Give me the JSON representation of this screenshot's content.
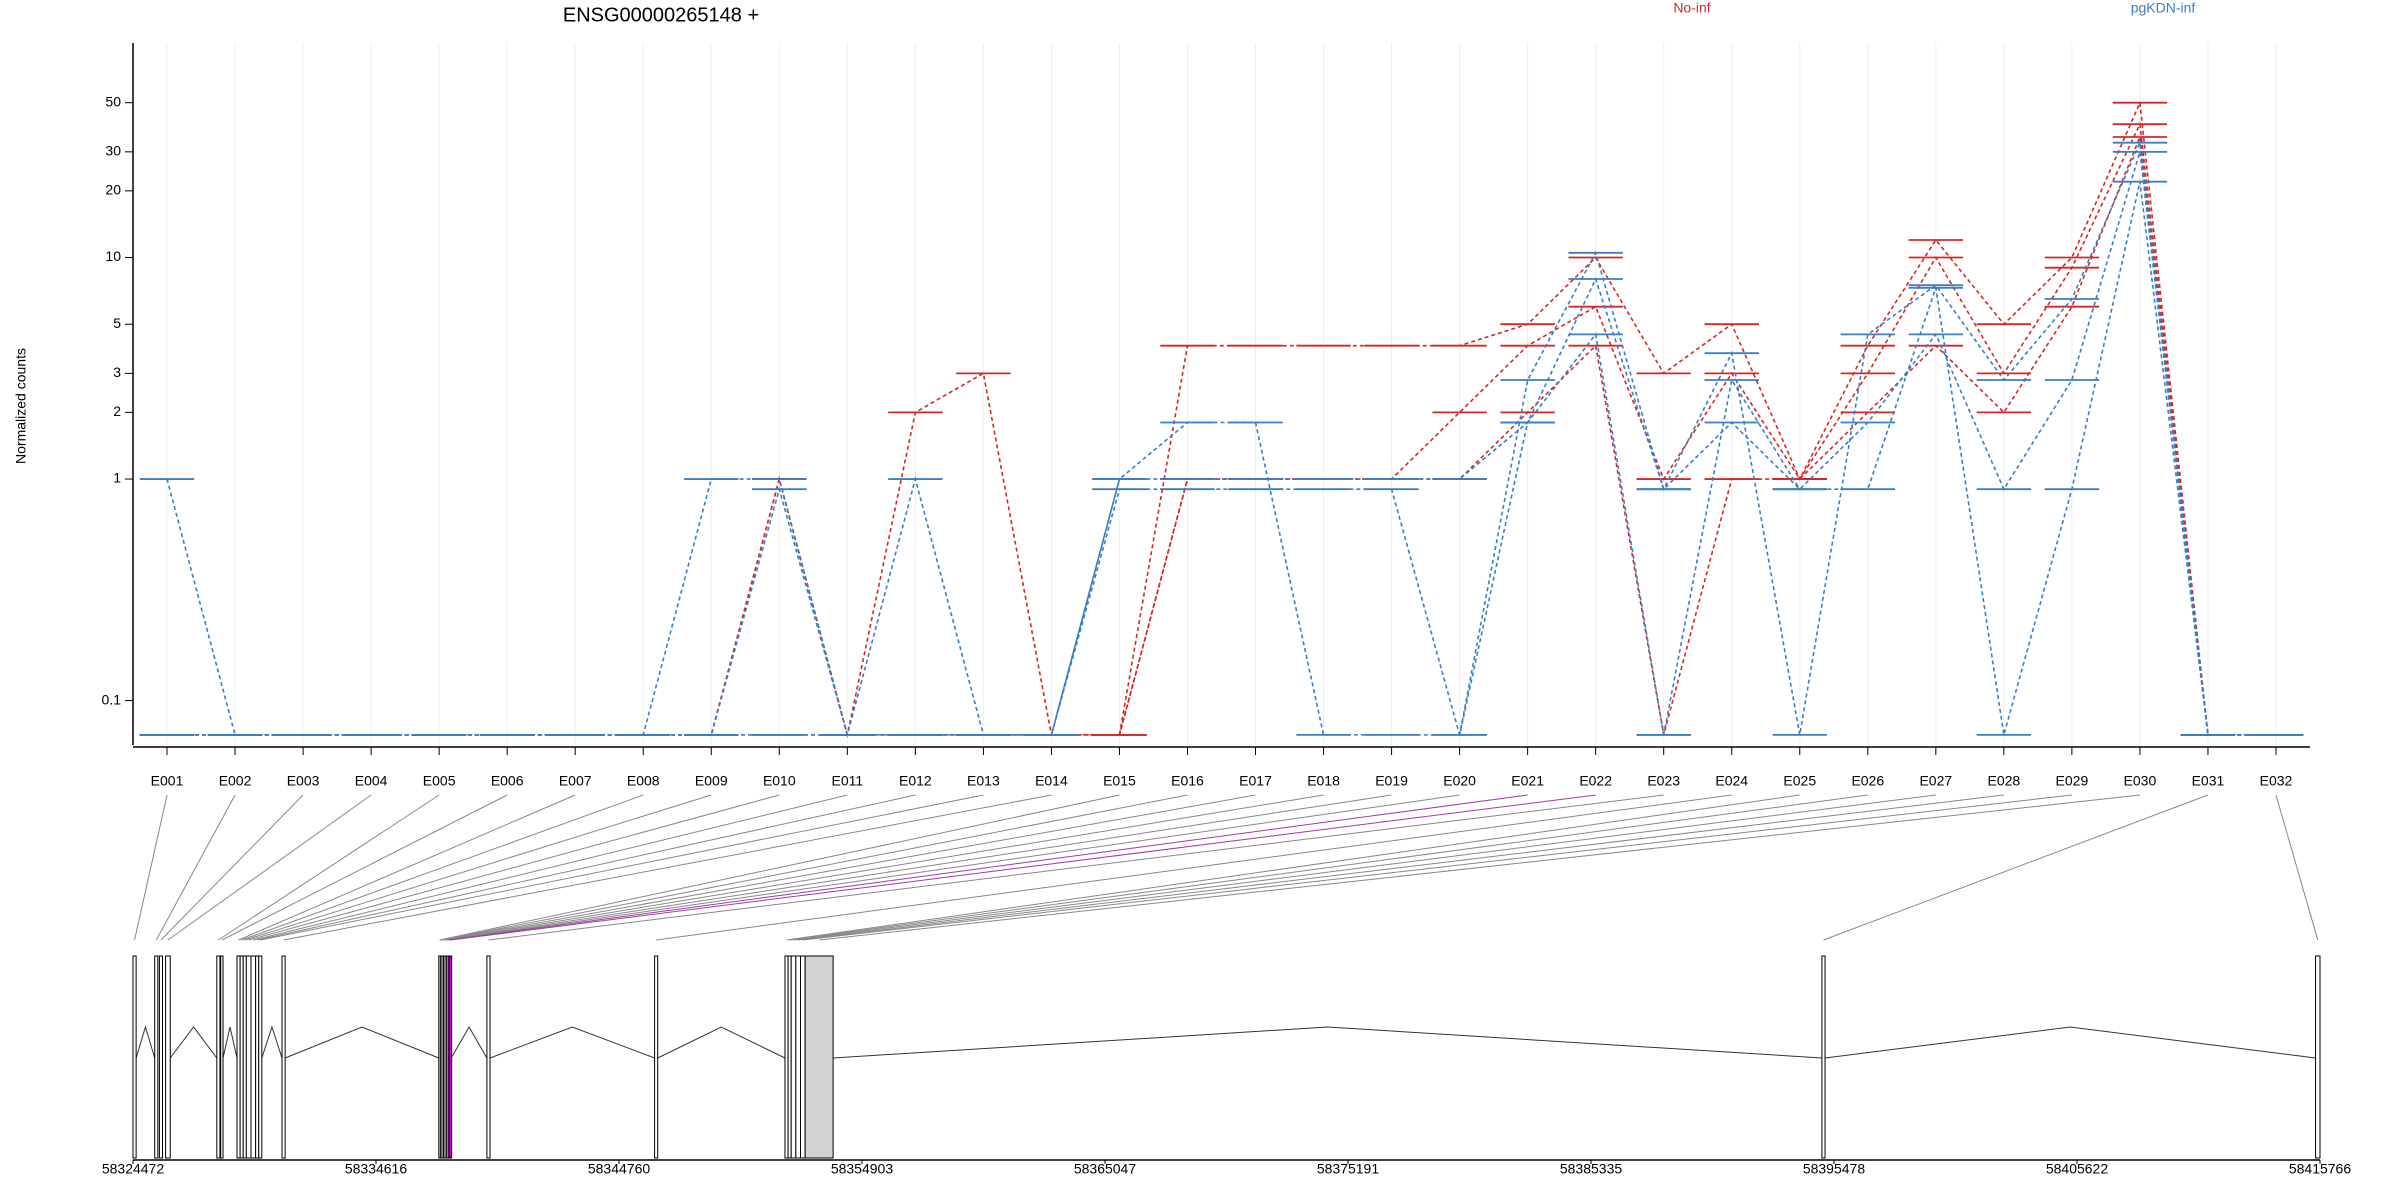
{
  "chart_data": {
    "type": "line",
    "title": "ENSG00000265148 +",
    "y_label": "Normalized counts",
    "log_y": true,
    "grid": true,
    "groups": [
      {
        "name": "No-inf",
        "color": "#d62728"
      },
      {
        "name": "pgKDN-inf",
        "color": "#3b7ec2"
      }
    ],
    "categories": [
      "E001",
      "E002",
      "E003",
      "E004",
      "E005",
      "E006",
      "E007",
      "E008",
      "E009",
      "E010",
      "E011",
      "E012",
      "E013",
      "E014",
      "E015",
      "E016",
      "E017",
      "E018",
      "E019",
      "E020",
      "E021",
      "E022",
      "E023",
      "E024",
      "E025",
      "E026",
      "E027",
      "E028",
      "E029",
      "E030",
      "E031",
      "E032"
    ],
    "series": [
      {
        "group": 0,
        "values": [
          0.07,
          0.07,
          0.07,
          0.07,
          0.07,
          0.07,
          0.07,
          0.07,
          0.07,
          1,
          0.07,
          2,
          3,
          0.07,
          0.07,
          4,
          4,
          4,
          4,
          4,
          5,
          10,
          3,
          5,
          1,
          4,
          12,
          5,
          10,
          50,
          0.07,
          0.07
        ]
      },
      {
        "group": 0,
        "values": [
          0.07,
          0.07,
          0.07,
          0.07,
          0.07,
          0.07,
          0.07,
          0.07,
          0.07,
          1,
          0.07,
          0.07,
          0.07,
          0.07,
          0.07,
          1,
          1,
          1,
          1,
          2,
          4,
          6,
          1,
          3,
          1,
          3,
          10,
          3,
          9,
          40,
          0.07,
          0.07
        ]
      },
      {
        "group": 0,
        "values": [
          0.07,
          0.07,
          0.07,
          0.07,
          0.07,
          0.07,
          0.07,
          0.07,
          0.07,
          0.07,
          0.07,
          0.07,
          0.07,
          0.07,
          0.07,
          1,
          1,
          1,
          1,
          1,
          2,
          4,
          0.07,
          1,
          1,
          2,
          4,
          2,
          6,
          35,
          0.07,
          0.07
        ]
      },
      {
        "group": 1,
        "values": [
          1,
          0.07,
          0.07,
          0.07,
          0.07,
          0.07,
          0.07,
          0.07,
          1,
          1,
          0.07,
          1,
          0.07,
          0.07,
          1,
          1.8,
          1.8,
          0.07,
          0.07,
          0.07,
          2.8,
          10.5,
          0.9,
          3.7,
          0.07,
          4.5,
          7.5,
          2.8,
          6.5,
          33,
          0.07,
          0.07
        ]
      },
      {
        "group": 1,
        "values": [
          0.07,
          0.07,
          0.07,
          0.07,
          0.07,
          0.07,
          0.07,
          0.07,
          0.07,
          0.07,
          0.07,
          0.07,
          0.07,
          0.07,
          1,
          1,
          1,
          1,
          1,
          1,
          1.8,
          8,
          0.9,
          1.8,
          0.9,
          1.8,
          4.5,
          0.9,
          2.8,
          30,
          0.07,
          0.07
        ]
      },
      {
        "group": 1,
        "values": [
          0.07,
          0.07,
          0.07,
          0.07,
          0.07,
          0.07,
          0.07,
          0.07,
          0.07,
          0.9,
          0.07,
          0.07,
          0.07,
          0.07,
          0.9,
          0.9,
          0.9,
          0.9,
          0.9,
          0.07,
          1.8,
          4.5,
          0.07,
          2.8,
          0.9,
          0.9,
          7.3,
          0.07,
          0.9,
          22,
          0.07,
          0.07
        ]
      }
    ],
    "ylim": [
      0.063,
      93
    ],
    "yticks": [
      0.1,
      1,
      2,
      3,
      5,
      10,
      20,
      30,
      50
    ],
    "highlight": [
      "E021",
      "E022"
    ],
    "highlight_color": "#ff00ff",
    "exons": [
      {
        "start": 58324472,
        "end": 58324602
      },
      {
        "start": 58325379,
        "end": 58325509
      },
      {
        "start": 58325574,
        "end": 58325703
      },
      {
        "start": 58325833,
        "end": 58326027
      },
      {
        "start": 58327971,
        "end": 58328101
      },
      {
        "start": 58328133,
        "end": 58328230
      },
      {
        "start": 58328814,
        "end": 58328944
      },
      {
        "start": 58328944,
        "end": 58329073
      },
      {
        "start": 58329073,
        "end": 58329203
      },
      {
        "start": 58329203,
        "end": 58329397
      },
      {
        "start": 58329397,
        "end": 58329591
      },
      {
        "start": 58329591,
        "end": 58329721
      },
      {
        "start": 58329721,
        "end": 58329850
      },
      {
        "start": 58330693,
        "end": 58330822
      },
      {
        "start": 58337238,
        "end": 58337303
      },
      {
        "start": 58337303,
        "end": 58337367
      },
      {
        "start": 58337367,
        "end": 58337432
      },
      {
        "start": 58337432,
        "end": 58337497
      },
      {
        "start": 58337497,
        "end": 58337562
      },
      {
        "start": 58337562,
        "end": 58337627
      },
      {
        "start": 58337627,
        "end": 58337691
      },
      {
        "start": 58337691,
        "end": 58337756
      },
      {
        "start": 58339246,
        "end": 58339376
      },
      {
        "start": 58346245,
        "end": 58346375
      },
      {
        "start": 58351688,
        "end": 58351818
      },
      {
        "start": 58351818,
        "end": 58351947
      },
      {
        "start": 58351947,
        "end": 58352142
      },
      {
        "start": 58352142,
        "end": 58352336
      },
      {
        "start": 58352336,
        "end": 58352530
      },
      {
        "start": 58352530,
        "end": 58353697
      },
      {
        "start": 58394974,
        "end": 58395104
      },
      {
        "start": 58415581,
        "end": 58415766
      }
    ],
    "xlim": [
      58324472,
      58415766
    ],
    "xticks": [
      58324472,
      58334616,
      58344760,
      58354903,
      58365047,
      58375191,
      58385335,
      58395478,
      58405622,
      58415766
    ]
  }
}
